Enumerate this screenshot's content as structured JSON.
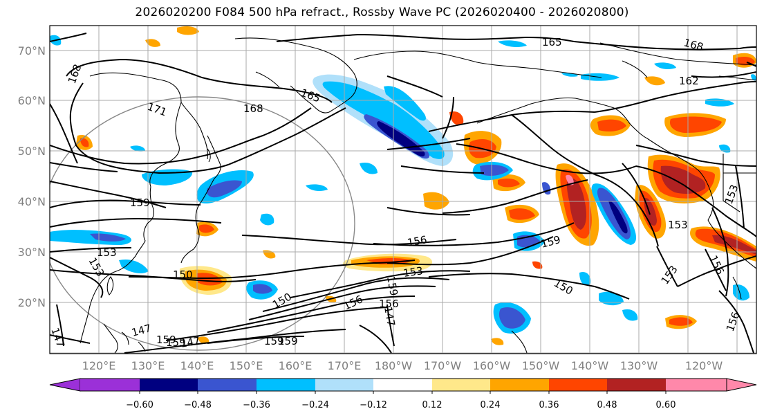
{
  "title": "2026020200 F084 500 hPa refract., Rossby Wave PC (2026020400 - 2026020800)",
  "lat_labels": [
    "70°N",
    "60°N",
    "50°N",
    "40°N",
    "30°N",
    "20°N"
  ],
  "lon_labels": [
    "120°E",
    "130°E",
    "140°E",
    "150°E",
    "160°E",
    "170°E",
    "180°W",
    "170°W",
    "160°W",
    "150°W",
    "140°W",
    "130°W",
    "120°W"
  ],
  "contour_labels": [
    "168",
    "171",
    "168",
    "165",
    "165",
    "168",
    "162",
    "159",
    "156",
    "159",
    "153",
    "153",
    "156",
    "153",
    "153",
    "150",
    "150",
    "150",
    "153",
    "156",
    "147",
    "147",
    "147",
    "159",
    "159",
    "159",
    "156",
    "159",
    "153",
    "147",
    "159",
    "156"
  ],
  "colorbar": {
    "ticks": [
      "−0.60",
      "−0.48",
      "−0.36",
      "−0.24",
      "−0.12",
      "0.12",
      "0.24",
      "0.36",
      "0.48",
      "0.60"
    ],
    "colors": [
      "#9b30d8",
      "#000080",
      "#3a55d0",
      "#00bfff",
      "#b0e0fa",
      "#ffffff",
      "#ffe88a",
      "#ffa500",
      "#ff4500",
      "#b22222",
      "#ff88aa"
    ]
  },
  "colors": {
    "grid": "#aaaaaa",
    "coast": "#000000",
    "contour": "#000000",
    "circle": "#888888"
  }
}
